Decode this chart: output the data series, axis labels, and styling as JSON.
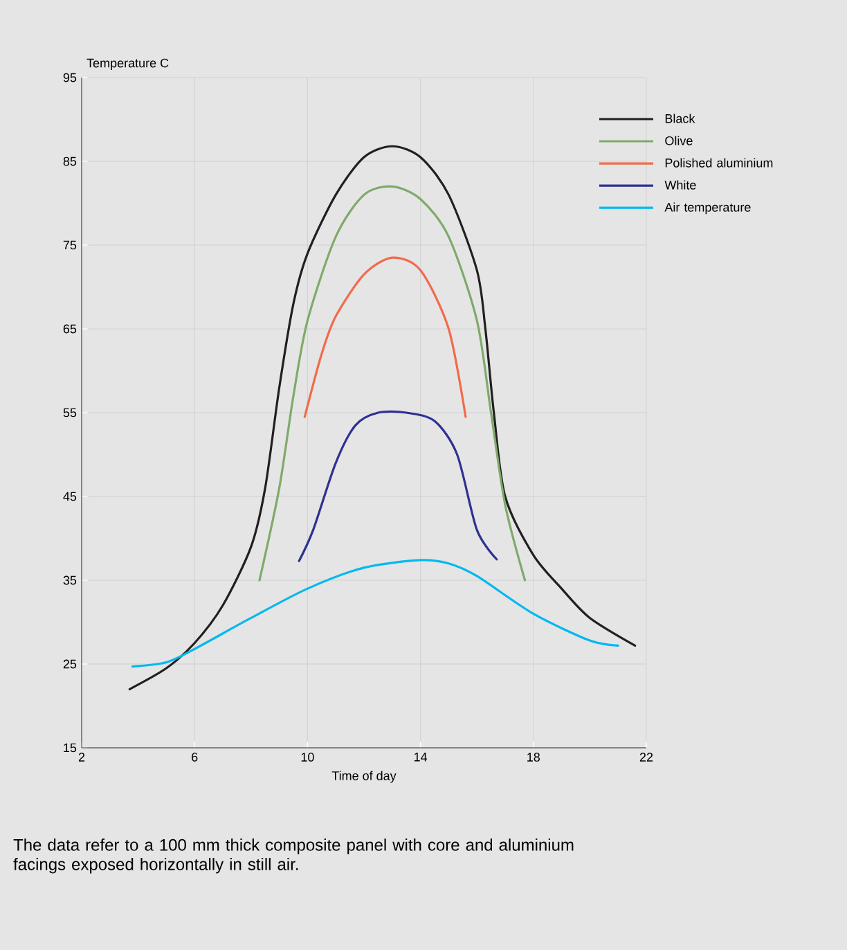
{
  "chart_data": {
    "type": "line",
    "xlabel": "Time of day",
    "ylabel": "Temperature C",
    "xlim": [
      2,
      22
    ],
    "ylim": [
      15,
      95
    ],
    "xticks": [
      2,
      6,
      10,
      14,
      18,
      22
    ],
    "yticks": [
      15,
      25,
      35,
      45,
      55,
      65,
      75,
      85,
      95
    ],
    "grid": true,
    "legend": "top right",
    "marker": "none",
    "line_style": "solid",
    "series": [
      {
        "name": "Black",
        "color": "#231f20",
        "x": [
          3.7,
          5,
          6,
          7,
          8,
          8.5,
          9,
          9.5,
          10,
          11,
          12,
          13,
          14,
          15,
          16,
          16.3,
          16.6,
          17,
          18,
          19,
          20,
          21.6
        ],
        "values": [
          22,
          24.5,
          27.5,
          32,
          39,
          46,
          58,
          68,
          74,
          81,
          85.5,
          86.8,
          85.5,
          81,
          72,
          65,
          55,
          45,
          38,
          34,
          30.5,
          27.2
        ]
      },
      {
        "name": "Olive",
        "color": "#7faa6a",
        "x": [
          8.3,
          9,
          9.5,
          10,
          11,
          12,
          13,
          14,
          15,
          16,
          16.5,
          17,
          17.7
        ],
        "values": [
          35,
          46,
          57,
          66,
          76,
          81,
          82,
          80.5,
          76,
          66,
          55,
          44,
          35
        ]
      },
      {
        "name": "Polished aluminium",
        "color": "#f26a4b",
        "x": [
          9.9,
          10.5,
          11,
          12,
          13,
          14,
          15,
          15.6
        ],
        "values": [
          54.5,
          62,
          66.5,
          71.5,
          73.5,
          72,
          65,
          54.5
        ]
      },
      {
        "name": "White",
        "color": "#2e3192",
        "x": [
          9.7,
          10.2,
          11,
          11.7,
          12.5,
          13.5,
          14.5,
          15.3,
          16,
          16.7
        ],
        "values": [
          37.3,
          41,
          49,
          53.5,
          55,
          55,
          54,
          50,
          41,
          37.5
        ]
      },
      {
        "name": "Air temperature",
        "color": "#00b9f1",
        "x": [
          3.8,
          5,
          6,
          8,
          10,
          12,
          14,
          15,
          16,
          18,
          20,
          21
        ],
        "values": [
          24.7,
          25.2,
          26.8,
          30.5,
          34,
          36.5,
          37.4,
          37,
          35.5,
          31,
          27.8,
          27.2
        ]
      }
    ],
    "annotations": [
      "The data refer to a 100 mm thick composite panel with core and aluminium facings exposed horizontally in still air."
    ]
  }
}
